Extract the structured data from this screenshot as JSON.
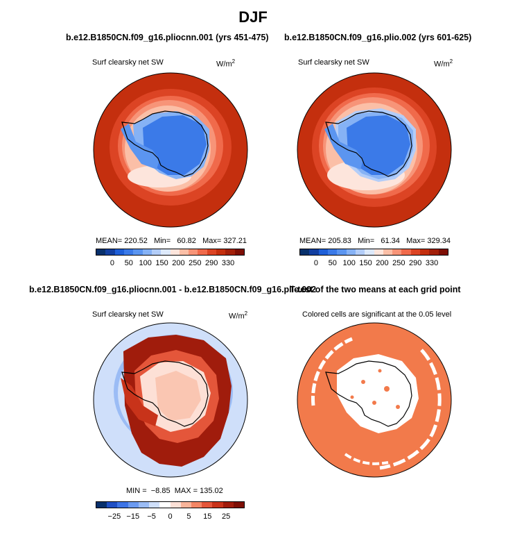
{
  "page_title": "DJF",
  "panels": [
    {
      "title": "b.e12.B1850CN.f09_g16.pliocnn.001 (yrs 451-475)",
      "subtitle": "Surf clearsky net SW",
      "units": "W/m",
      "units_sup": "2",
      "stats": {
        "mean": "MEAN= 220.52",
        "min": "Min=   60.82",
        "max": "Max= 327.21"
      },
      "colorbar_ticks": [
        "0",
        "50",
        "100",
        "150",
        "200",
        "250",
        "290",
        "330"
      ]
    },
    {
      "title": "b.e12.B1850CN.f09_g16.plio.002 (yrs 601-625)",
      "subtitle": "Surf clearsky net SW",
      "units": "W/m",
      "units_sup": "2",
      "stats": {
        "mean": "MEAN= 205.83",
        "min": "Min=   61.34",
        "max": "Max= 329.34"
      },
      "colorbar_ticks": [
        "0",
        "50",
        "100",
        "150",
        "200",
        "250",
        "290",
        "330"
      ]
    },
    {
      "title": "b.e12.B1850CN.f09_g16.pliocnn.001 - b.e12.B1850CN.f09_g16.plio.002",
      "subtitle": "Surf clearsky net SW",
      "units": "W/m",
      "units_sup": "2",
      "stats": {
        "min": "MIN =  −8.85",
        "max": "MAX = 135.02"
      },
      "colorbar_ticks": [
        "−25",
        "−15",
        "−5",
        "0",
        "5",
        "15",
        "25"
      ]
    },
    {
      "title": "T-test of the two means at each grid point",
      "subtitle": "Colored cells are significant at the 0.05 level"
    }
  ],
  "colors": {
    "abs_scale": [
      "#08306b",
      "#123fa0",
      "#1e5fd8",
      "#3b7ae8",
      "#5b95f0",
      "#86b2f5",
      "#b3cdf8",
      "#dde9fb",
      "#fde5dc",
      "#fbbfa7",
      "#f79478",
      "#f06a4b",
      "#dc4424",
      "#c42f0e",
      "#a3200a",
      "#7e0f05"
    ],
    "diff_scale": [
      "#08306b",
      "#1f4fc4",
      "#3d74e6",
      "#6b9af0",
      "#9bbcf5",
      "#cfdffa",
      "#ffffff",
      "#fde0d6",
      "#f9b49a",
      "#f38665",
      "#e4563a",
      "#c8331a",
      "#a01c0c",
      "#7e0f05"
    ],
    "ttest": "#f27a4b"
  }
}
